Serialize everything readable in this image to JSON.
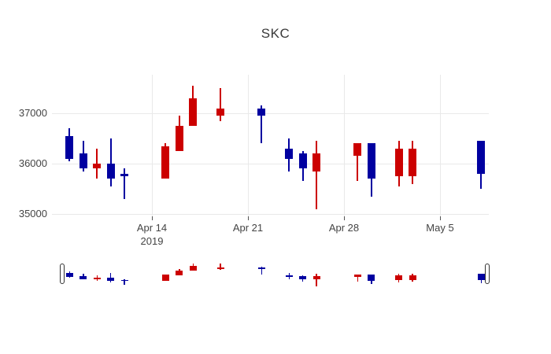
{
  "title": "SKC",
  "chart_data": {
    "type": "candlestick",
    "title": "SKC",
    "x": [
      "2019-04-08",
      "2019-04-09",
      "2019-04-10",
      "2019-04-11",
      "2019-04-12",
      "2019-04-15",
      "2019-04-16",
      "2019-04-17",
      "2019-04-19",
      "2019-04-22",
      "2019-04-24",
      "2019-04-25",
      "2019-04-26",
      "2019-04-29",
      "2019-04-30",
      "2019-05-02",
      "2019-05-03",
      "2019-05-08"
    ],
    "open": [
      36550,
      36200,
      35900,
      36000,
      35800,
      35700,
      36250,
      36750,
      36950,
      37100,
      36300,
      36200,
      35850,
      36150,
      36400,
      35750,
      35750,
      36450
    ],
    "high": [
      36700,
      36450,
      36300,
      36500,
      35900,
      36400,
      36950,
      37550,
      37500,
      37150,
      36500,
      36250,
      36450,
      36400,
      36400,
      36450,
      36450,
      36450
    ],
    "low": [
      36050,
      35850,
      35700,
      35550,
      35300,
      35700,
      36250,
      36750,
      36850,
      36400,
      35850,
      35650,
      35100,
      35650,
      35350,
      35550,
      35600,
      35500
    ],
    "close": [
      36100,
      35900,
      36000,
      35700,
      35750,
      36350,
      36750,
      37300,
      37100,
      36950,
      36100,
      35900,
      36200,
      36400,
      35700,
      36300,
      36300,
      35800
    ],
    "increasing_color": "#CC0000",
    "decreasing_color": "#0000A0",
    "grid": true,
    "legend": false,
    "rangeslider": true,
    "x_ticks": [
      {
        "label": "Apr 14",
        "sublabel": "2019",
        "date": "2019-04-14"
      },
      {
        "label": "Apr 21",
        "date": "2019-04-21"
      },
      {
        "label": "Apr 28",
        "date": "2019-04-28"
      },
      {
        "label": "May 5",
        "date": "2019-05-05"
      }
    ],
    "y_ticks": [
      {
        "label": "37000",
        "value": 37000
      },
      {
        "label": "36000",
        "value": 36000
      },
      {
        "label": "35000",
        "value": 35000
      }
    ],
    "y_range": [
      34950,
      37770
    ],
    "x_range_days_from_first_tick": [
      -7.3,
      24.6
    ]
  },
  "colors": {
    "grid": "#e9e9e9",
    "axis_text": "#444444",
    "tick_mark": "#555555",
    "slider_handle_border": "#333333"
  }
}
